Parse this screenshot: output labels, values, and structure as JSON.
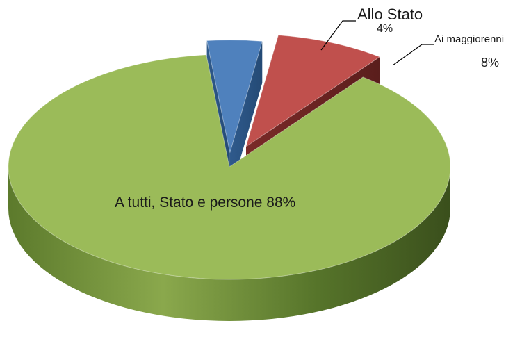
{
  "chart_data": {
    "type": "pie",
    "style": "3d-exploded",
    "slices": [
      {
        "label": "A tutti, Stato e persone",
        "value": 88,
        "percent_label": "88%",
        "color": "#9BBB59"
      },
      {
        "label": "Allo Stato",
        "value": 4,
        "percent_label": "4%",
        "color": "#4F81BD"
      },
      {
        "label": "Ai maggiorenni",
        "value": 8,
        "percent_label": "8%",
        "color": "#C0504D"
      }
    ]
  },
  "labels": {
    "stato_name": "Allo Stato",
    "stato_pct": "4%",
    "magg_name": "Ai maggiorenni",
    "magg_pct": "8%",
    "tutti_text": "A tutti, Stato e persone 88%"
  }
}
